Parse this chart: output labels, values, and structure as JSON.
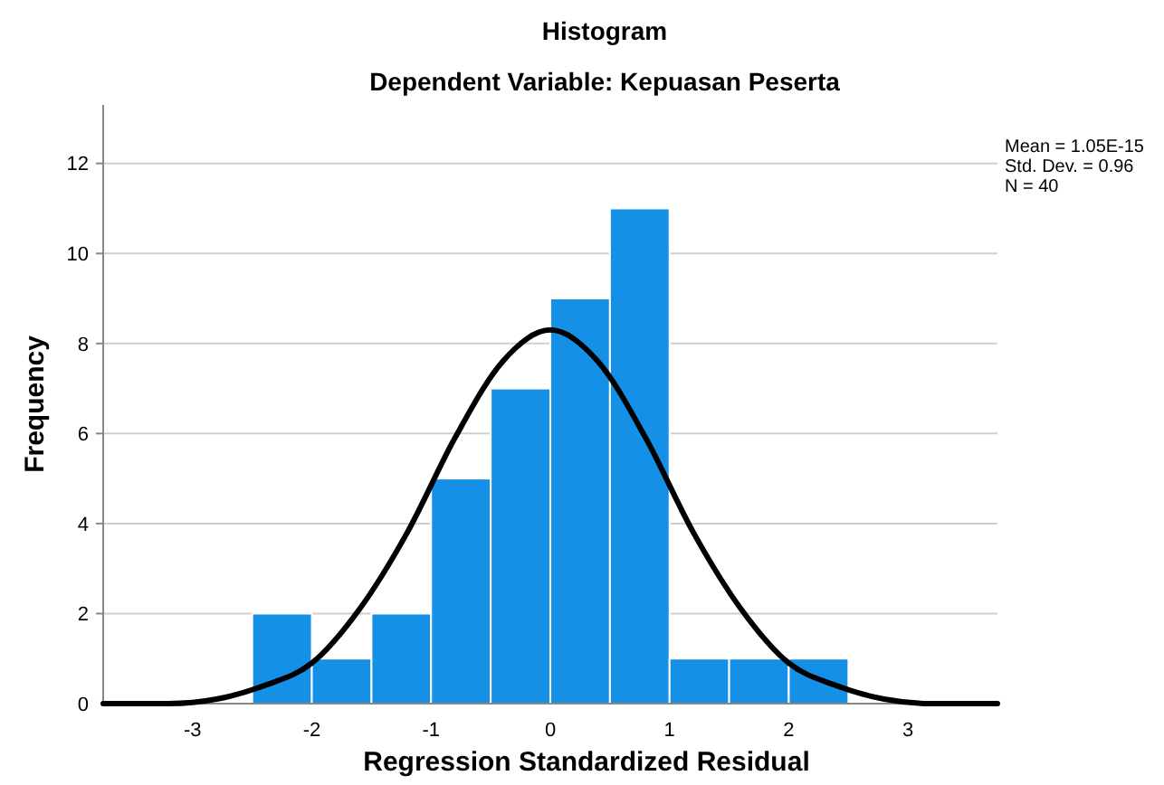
{
  "chart_data": {
    "type": "histogram",
    "title": "Histogram",
    "subtitle": "Dependent Variable: Kepuasan Peserta",
    "xlabel": "Regression Standardized Residual",
    "ylabel": "Frequency",
    "bins": [
      -2.5,
      -2,
      -1.5,
      -1,
      -0.5,
      0,
      0.5,
      1,
      1.5,
      2,
      2.5
    ],
    "values": [
      2,
      1,
      2,
      5,
      7,
      9,
      11,
      1,
      1,
      1
    ],
    "color": "#1490e6",
    "series": [
      {
        "type": "line",
        "color": "#000000",
        "x": [
          -3.75,
          -3.6,
          -3.2,
          -2.8,
          -2.4,
          -2.0,
          -1.6,
          -1.2,
          -0.8,
          -0.4,
          0,
          0.4,
          0.8,
          1.2,
          1.6,
          2.0,
          2.4,
          2.8,
          3.2,
          3.6,
          3.75
        ],
        "values": [
          0,
          0,
          0,
          0.1,
          0.4,
          0.9,
          2.1,
          3.8,
          5.9,
          7.6,
          8.3,
          7.6,
          5.9,
          3.8,
          2.1,
          0.9,
          0.4,
          0.1,
          0,
          0,
          0
        ]
      }
    ],
    "xlim": [
      -3.75,
      3.75
    ],
    "xticks": [
      -3,
      -2,
      -1,
      0,
      1,
      2,
      3
    ],
    "ylim": [
      0,
      13.3
    ],
    "yticks": [
      0,
      2,
      4,
      6,
      8,
      10,
      12
    ],
    "grid": "y",
    "annotations": [
      "Mean = 1.05E-15",
      "Std. Dev. = 0.96",
      "N = 40"
    ]
  }
}
